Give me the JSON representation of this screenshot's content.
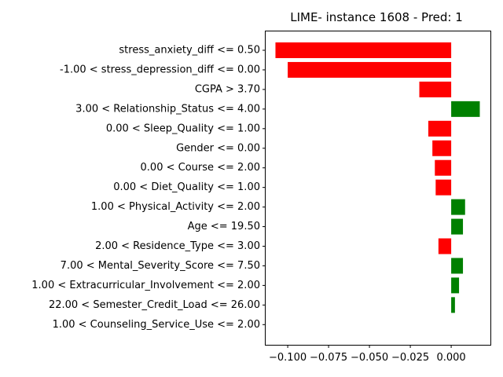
{
  "chart_data": {
    "type": "bar",
    "orientation": "horizontal",
    "title": "LIME- instance 1608 - Pred: 1",
    "xlabel": "",
    "ylabel": "",
    "categories": [
      "stress_anxiety_diff <= 0.50",
      "-1.00 < stress_depression_diff <= 0.00",
      "CGPA > 3.70",
      "3.00 < Relationship_Status <= 4.00",
      "0.00 < Sleep_Quality <= 1.00",
      "Gender <= 0.00",
      "0.00 < Course <= 2.00",
      "0.00 < Diet_Quality <= 1.00",
      "1.00 < Physical_Activity <= 2.00",
      "Age <= 19.50",
      "2.00 < Residence_Type <= 3.00",
      "7.00 < Mental_Severity_Score <= 7.50",
      "1.00 < Extracurricular_Involvement <= 2.00",
      "22.00 < Semester_Credit_Load <= 26.00",
      "1.00 < Counseling_Service_Use <= 2.00"
    ],
    "values": [
      -0.1075,
      -0.1,
      -0.0195,
      0.0175,
      -0.014,
      -0.0115,
      -0.01,
      -0.0095,
      0.0085,
      0.0072,
      -0.0078,
      0.0072,
      0.0048,
      0.0023,
      0.0
    ],
    "xlim": [
      -0.1135,
      0.024
    ],
    "xticks": [
      -0.1,
      -0.075,
      -0.05,
      -0.025,
      0.0
    ],
    "xtick_labels": [
      "−0.100",
      "−0.075",
      "−0.050",
      "−0.025",
      "0.000"
    ],
    "grid": false,
    "colors": {
      "positive": "#008000",
      "negative": "#ff0000",
      "axis": "#000000"
    }
  }
}
